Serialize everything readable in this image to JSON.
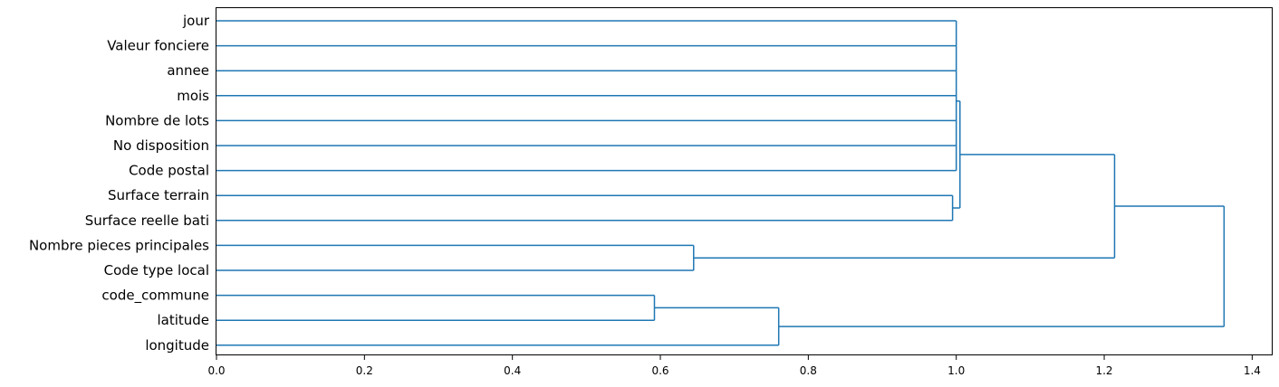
{
  "chart_data": {
    "type": "dendrogram",
    "orientation": "left",
    "line_color": "#1f77b4",
    "xlim": [
      0,
      1.4277
    ],
    "x_ticks": [
      0.0,
      0.2,
      0.4,
      0.6,
      0.8,
      1.0,
      1.2,
      1.4
    ],
    "x_tick_labels": [
      "0.0",
      "0.2",
      "0.4",
      "0.6",
      "0.8",
      "1.0",
      "1.2",
      "1.4"
    ],
    "xlabel": "",
    "ylabel": "",
    "title": "",
    "leaves_top_to_bottom": [
      "jour",
      "Valeur fonciere",
      "annee",
      "mois",
      "Nombre de lots",
      "No disposition",
      "Code postal",
      "Surface terrain",
      "Surface reelle bati",
      "Nombre pieces principales",
      "Code type local",
      "code_commune",
      "latitude",
      "longitude"
    ],
    "links": [
      {
        "from": [
          "jour",
          "Valeur fonciere",
          "annee",
          "mois",
          "Nombre de lots",
          "No disposition",
          "Code postal"
        ],
        "height": 1.0
      },
      {
        "from": [
          "Surface terrain",
          "Surface reelle bati"
        ],
        "height": 0.995
      },
      {
        "from": [
          "group:first7",
          "group:surface"
        ],
        "height": 1.005
      },
      {
        "from": [
          "Nombre pieces principales",
          "Code type local"
        ],
        "height": 0.645
      },
      {
        "from": [
          "group:first9",
          "group:pieces"
        ],
        "height": 1.214
      },
      {
        "from": [
          "code_commune",
          "latitude"
        ],
        "height": 0.592
      },
      {
        "from": [
          "group:commune_lat",
          "longitude"
        ],
        "height": 0.76
      },
      {
        "from": [
          "group:top11",
          "group:geo"
        ],
        "height": 1.362
      }
    ]
  }
}
